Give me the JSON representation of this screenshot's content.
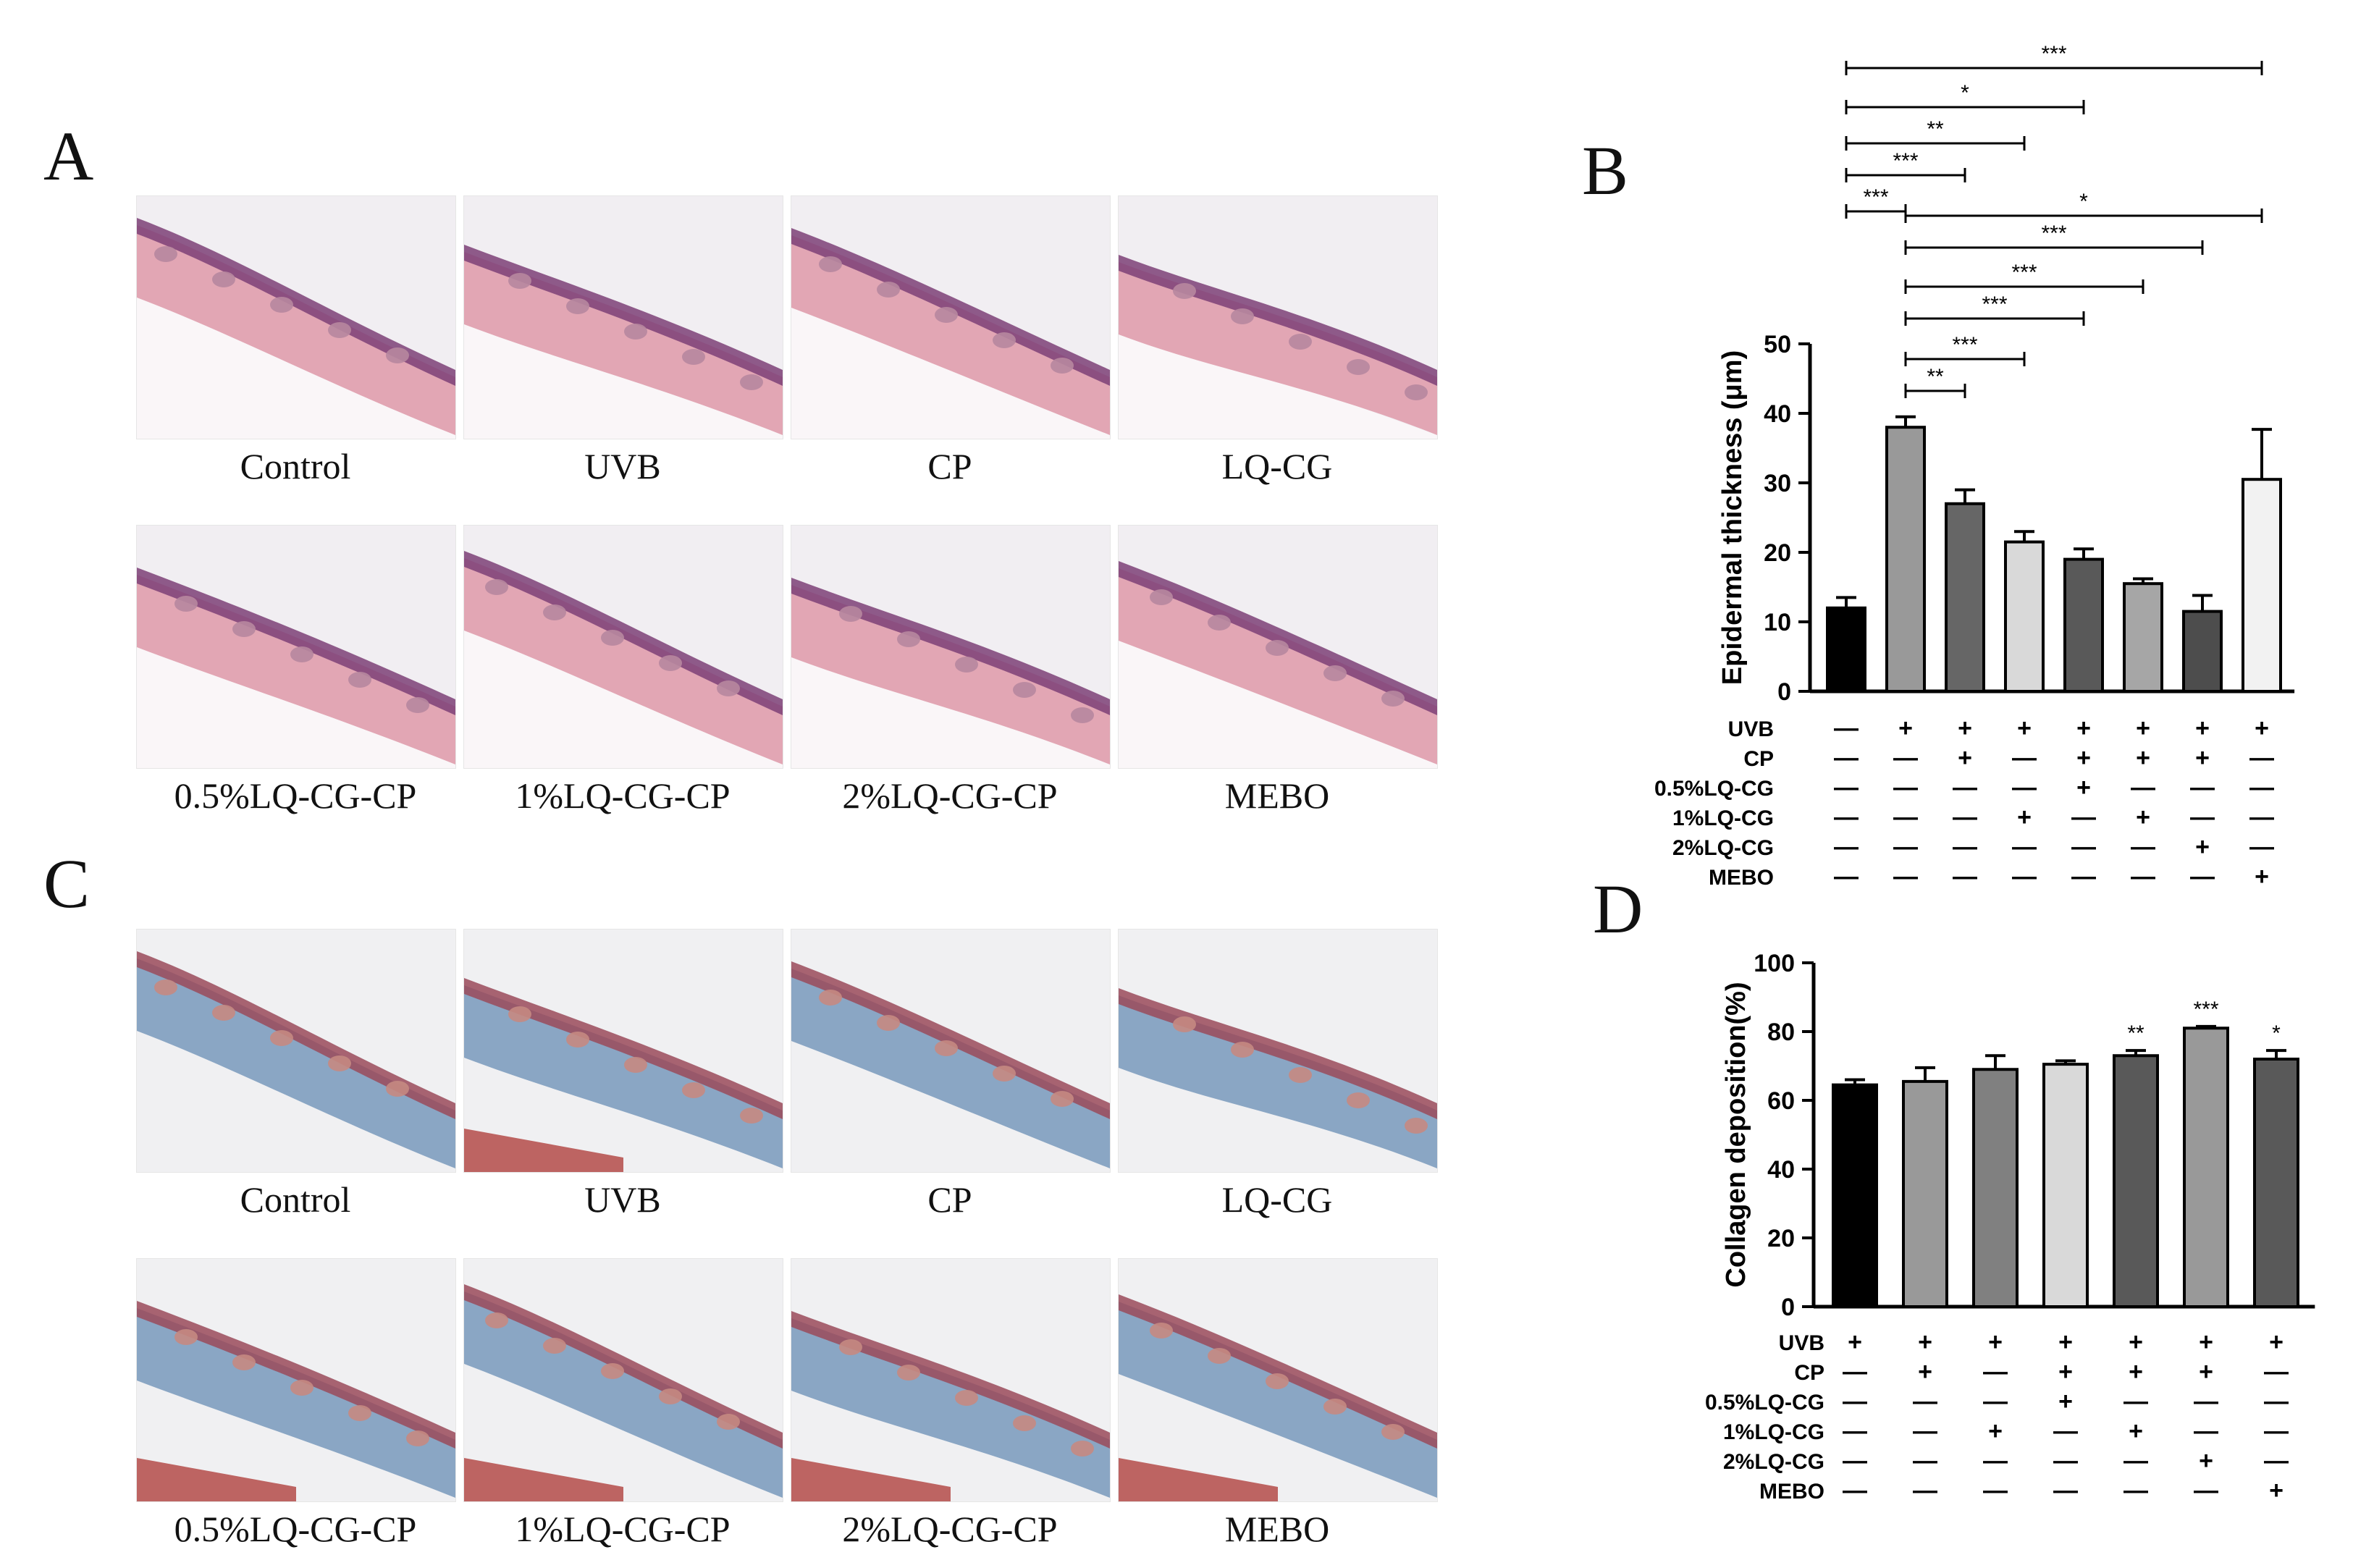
{
  "panels": {
    "A": {
      "letter": "A",
      "labels": [
        "Control",
        "UVB",
        "CP",
        "LQ-CG",
        "0.5%LQ-CG-CP",
        "1%LQ-CG-CP",
        "2%LQ-CG-CP",
        "MEBO"
      ],
      "stain": "he"
    },
    "C": {
      "letter": "C",
      "labels": [
        "Control",
        "UVB",
        "CP",
        "LQ-CG",
        "0.5%LQ-CG-CP",
        "1%LQ-CG-CP",
        "2%LQ-CG-CP",
        "MEBO"
      ],
      "stain": "masson"
    },
    "B": {
      "letter": "B"
    },
    "D": {
      "letter": "D"
    }
  },
  "colors": {
    "he_bg": "#f1eef2",
    "he_dermis": "#e2a6b4",
    "he_epi": "#7d3f77",
    "he_fat": "#faf6f8",
    "masson_bg": "#f0f0f2",
    "masson_dermis": "#8aa6c4",
    "masson_epi": "#9a4a5a",
    "masson_muscle": "#b0413d"
  },
  "chart_data": [
    {
      "panel": "B",
      "type": "bar",
      "categories": [
        "1",
        "2",
        "3",
        "4",
        "5",
        "6",
        "7",
        "8"
      ],
      "values": [
        12,
        38,
        27,
        21.5,
        19,
        15.5,
        11.5,
        30.5
      ],
      "errors": [
        1.5,
        1.5,
        2,
        1.5,
        1.5,
        0.7,
        2.3,
        7.2
      ],
      "bar_colors": [
        "#000000",
        "#999999",
        "#666666",
        "#d9d9d9",
        "#595959",
        "#a6a6a6",
        "#4d4d4d",
        "#f2f2f2"
      ],
      "ylabel": "Epidermal thickness (μm)",
      "ylim": [
        0,
        50
      ],
      "yticks": [
        0,
        10,
        20,
        30,
        40,
        50
      ],
      "table_rows": [
        {
          "label": "UVB",
          "cells": [
            "—",
            "+",
            "+",
            "+",
            "+",
            "+",
            "+",
            "+"
          ]
        },
        {
          "label": "CP",
          "cells": [
            "—",
            "—",
            "+",
            "—",
            "+",
            "+",
            "+",
            "—"
          ]
        },
        {
          "label": "0.5%LQ-CG",
          "cells": [
            "—",
            "—",
            "—",
            "—",
            "+",
            "—",
            "—",
            "—"
          ]
        },
        {
          "label": "1%LQ-CG",
          "cells": [
            "—",
            "—",
            "—",
            "+",
            "—",
            "+",
            "—",
            "—"
          ]
        },
        {
          "label": "2%LQ-CG",
          "cells": [
            "—",
            "—",
            "—",
            "—",
            "—",
            "—",
            "+",
            "—"
          ]
        },
        {
          "label": "MEBO",
          "cells": [
            "—",
            "—",
            "—",
            "—",
            "—",
            "—",
            "—",
            "+"
          ]
        }
      ],
      "brackets": [
        {
          "from": 1,
          "to": 8,
          "label": "***"
        },
        {
          "from": 1,
          "to": 5,
          "label": "*"
        },
        {
          "from": 1,
          "to": 4,
          "label": "**"
        },
        {
          "from": 1,
          "to": 3,
          "label": "***"
        },
        {
          "from": 1,
          "to": 2,
          "label": "***"
        },
        {
          "from": 2,
          "to": 8,
          "label": "*"
        },
        {
          "from": 2,
          "to": 7,
          "label": "***"
        },
        {
          "from": 2,
          "to": 6,
          "label": "***"
        },
        {
          "from": 2,
          "to": 5,
          "label": "***"
        },
        {
          "from": 2,
          "to": 4,
          "label": "***"
        },
        {
          "from": 2,
          "to": 3,
          "label": "**"
        }
      ]
    },
    {
      "panel": "D",
      "type": "bar",
      "categories": [
        "1",
        "2",
        "3",
        "4",
        "5",
        "6",
        "7"
      ],
      "values": [
        64.5,
        65.5,
        69,
        70.5,
        73,
        81,
        72
      ],
      "errors": [
        1.5,
        4,
        4,
        1,
        1.5,
        0.5,
        2.5
      ],
      "bar_colors": [
        "#000000",
        "#999999",
        "#808080",
        "#d9d9d9",
        "#595959",
        "#999999",
        "#595959"
      ],
      "sig": [
        "",
        "",
        "",
        "",
        "**",
        "***",
        "*"
      ],
      "ylabel": "Collagen deposition(%)",
      "ylim": [
        0,
        100
      ],
      "yticks": [
        0,
        20,
        40,
        60,
        80,
        100
      ],
      "table_rows": [
        {
          "label": "UVB",
          "cells": [
            "+",
            "+",
            "+",
            "+",
            "+",
            "+",
            "+"
          ]
        },
        {
          "label": "CP",
          "cells": [
            "—",
            "+",
            "—",
            "+",
            "+",
            "+",
            "—"
          ]
        },
        {
          "label": "0.5%LQ-CG",
          "cells": [
            "—",
            "—",
            "—",
            "+",
            "—",
            "—",
            "—"
          ]
        },
        {
          "label": "1%LQ-CG",
          "cells": [
            "—",
            "—",
            "+",
            "—",
            "+",
            "—",
            "—"
          ]
        },
        {
          "label": "2%LQ-CG",
          "cells": [
            "—",
            "—",
            "—",
            "—",
            "—",
            "+",
            "—"
          ]
        },
        {
          "label": "MEBO",
          "cells": [
            "—",
            "—",
            "—",
            "—",
            "—",
            "—",
            "+"
          ]
        }
      ]
    }
  ]
}
